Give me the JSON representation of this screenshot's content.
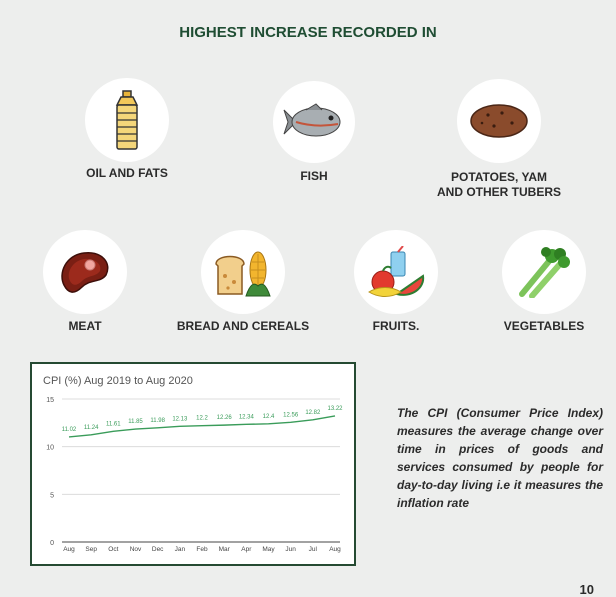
{
  "heading": "HIGHEST INCREASE RECORDED IN",
  "categories": [
    {
      "label": "OIL AND FATS",
      "icon": "oil-bottle-icon"
    },
    {
      "label": "FISH",
      "icon": "fish-icon"
    },
    {
      "label_line1": "POTATOES, YAM",
      "label_line2": "AND OTHER TUBERS",
      "icon": "potato-icon"
    },
    {
      "label": "MEAT",
      "icon": "meat-steak-icon"
    },
    {
      "label": "BREAD AND CEREALS",
      "icon": "bread-corn-icon"
    },
    {
      "label": "FRUITS.",
      "icon": "fruits-icon"
    },
    {
      "label": "VEGETABLES",
      "icon": "celery-icon"
    }
  ],
  "description": "The CPI (Consumer Price Index) measures the average change over time in prices of goods and services consumed by people for day-to-day living i.e it measures the inflation rate",
  "page_number": "10",
  "colors": {
    "heading": "#1f4d33",
    "line": "#3a9c5a",
    "border": "#254a32"
  },
  "chart_data": {
    "type": "line",
    "title": "CPI (%) Aug 2019 to Aug 2020",
    "categories": [
      "Aug",
      "Sep",
      "Oct",
      "Nov",
      "Dec",
      "Jan",
      "Feb",
      "Mar",
      "Apr",
      "May",
      "Jun",
      "Jul",
      "Aug"
    ],
    "values": [
      11.02,
      11.24,
      11.61,
      11.85,
      11.98,
      12.13,
      12.2,
      12.26,
      12.34,
      12.4,
      12.56,
      12.82,
      13.22
    ],
    "yticks": [
      0,
      5,
      10,
      15
    ],
    "ylim": [
      0,
      15
    ],
    "grid": true
  }
}
